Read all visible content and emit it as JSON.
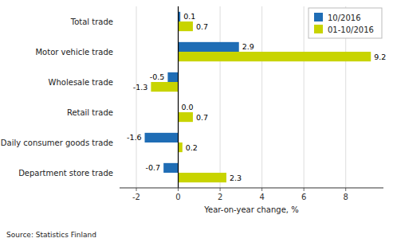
{
  "chart_data": {
    "type": "bar",
    "orientation": "horizontal",
    "categories": [
      "Total trade",
      "Motor vehicle trade",
      "Wholesale trade",
      "Retail trade",
      "Daily consumer goods trade",
      "Department store trade"
    ],
    "series": [
      {
        "name": "10/2016",
        "color": "#1F6DB5",
        "values": [
          0.1,
          2.9,
          -0.5,
          0.0,
          -1.6,
          -0.7
        ],
        "value_labels": [
          "0.1",
          "2.9",
          "-0.5",
          "0.0",
          "-1.6",
          "-0.7"
        ]
      },
      {
        "name": "01-10/2016",
        "color": "#C8D400",
        "values": [
          0.7,
          9.2,
          -1.3,
          0.7,
          0.2,
          2.3
        ],
        "value_labels": [
          "0.7",
          "9.2",
          "-1.3",
          "0.7",
          "0.2",
          "2.3"
        ]
      }
    ],
    "xlabel": "Year-on-year change, %",
    "xlim": [
      -2.8,
      9.8
    ],
    "xticks": [
      -2,
      0,
      2,
      4,
      6,
      8
    ],
    "grid": true,
    "legend": "upper right",
    "data_labels": true,
    "annotations": [
      "Source: Statistics Finland"
    ]
  }
}
